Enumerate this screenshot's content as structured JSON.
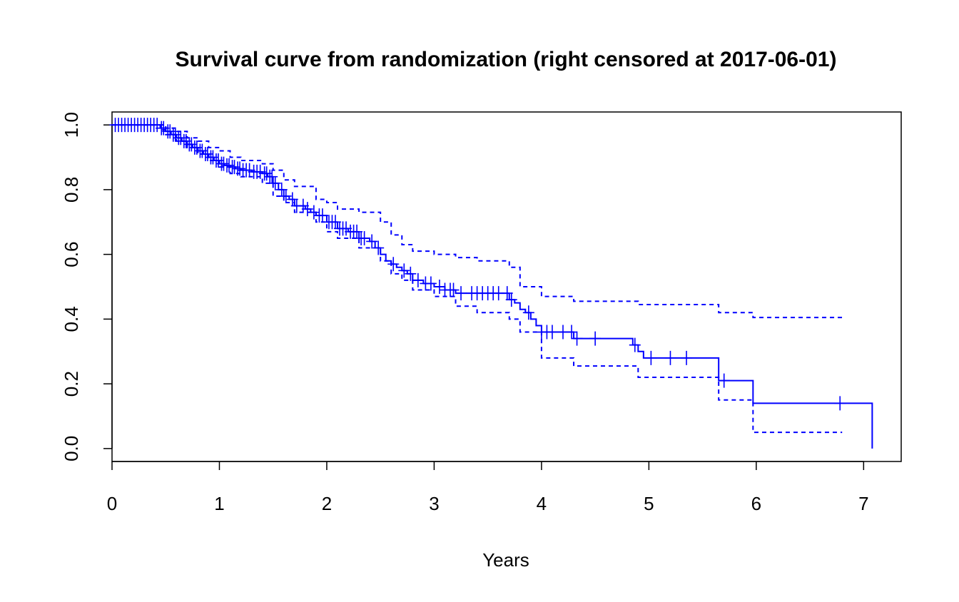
{
  "chart_data": {
    "type": "line",
    "title": "Survival curve from randomization (right censored at 2017-06-01)",
    "xlabel": "Years",
    "ylabel": "",
    "xlim": [
      0,
      7.35
    ],
    "ylim": [
      -0.04,
      1.04
    ],
    "x_ticks": [
      0,
      1,
      2,
      3,
      4,
      5,
      6,
      7
    ],
    "y_ticks": [
      0.0,
      0.2,
      0.4,
      0.6,
      0.8,
      1.0
    ],
    "x_tick_labels": [
      "0",
      "1",
      "2",
      "3",
      "4",
      "5",
      "6",
      "7"
    ],
    "y_tick_labels": [
      "0.0",
      "0.2",
      "0.4",
      "0.6",
      "0.8",
      "1.0"
    ],
    "grid": false,
    "color": "#0000FF",
    "series": [
      {
        "style": "solid",
        "x": [
          0,
          0.45,
          0.5,
          0.55,
          0.6,
          0.65,
          0.7,
          0.75,
          0.8,
          0.85,
          0.9,
          0.95,
          1.0,
          1.05,
          1.1,
          1.15,
          1.2,
          1.3,
          1.4,
          1.45,
          1.5,
          1.55,
          1.6,
          1.65,
          1.7,
          1.8,
          1.85,
          1.9,
          2.0,
          2.1,
          2.2,
          2.3,
          2.4,
          2.45,
          2.5,
          2.55,
          2.6,
          2.65,
          2.7,
          2.75,
          2.8,
          2.9,
          3.0,
          3.1,
          3.2,
          3.7,
          3.75,
          3.8,
          3.85,
          3.9,
          3.95,
          4.0,
          4.3,
          4.35,
          4.85,
          4.9,
          4.95,
          5.65,
          5.97,
          7.08
        ],
        "y": [
          1.0,
          0.99,
          0.98,
          0.97,
          0.96,
          0.95,
          0.94,
          0.93,
          0.92,
          0.91,
          0.9,
          0.89,
          0.88,
          0.875,
          0.87,
          0.865,
          0.86,
          0.855,
          0.85,
          0.84,
          0.82,
          0.8,
          0.78,
          0.77,
          0.75,
          0.74,
          0.73,
          0.72,
          0.7,
          0.68,
          0.67,
          0.65,
          0.64,
          0.62,
          0.6,
          0.58,
          0.57,
          0.56,
          0.55,
          0.54,
          0.52,
          0.51,
          0.5,
          0.49,
          0.48,
          0.46,
          0.45,
          0.43,
          0.42,
          0.4,
          0.38,
          0.36,
          0.34,
          0.34,
          0.32,
          0.3,
          0.28,
          0.21,
          0.14,
          0.0
        ]
      },
      {
        "style": "dashed",
        "x": [
          0,
          0.45,
          0.5,
          0.6,
          0.7,
          0.8,
          0.9,
          1.0,
          1.1,
          1.2,
          1.4,
          1.5,
          1.6,
          1.7,
          1.9,
          2.0,
          2.1,
          2.3,
          2.5,
          2.6,
          2.7,
          2.8,
          3.0,
          3.2,
          3.4,
          3.7,
          3.8,
          4.0,
          4.3,
          4.9,
          5.65,
          5.97,
          6.8
        ],
        "y": [
          1.0,
          1.0,
          0.99,
          0.98,
          0.96,
          0.95,
          0.93,
          0.92,
          0.9,
          0.89,
          0.88,
          0.86,
          0.83,
          0.81,
          0.77,
          0.76,
          0.74,
          0.73,
          0.7,
          0.66,
          0.63,
          0.61,
          0.6,
          0.59,
          0.58,
          0.56,
          0.5,
          0.47,
          0.455,
          0.445,
          0.42,
          0.405,
          0.405
        ]
      },
      {
        "style": "dashed",
        "x": [
          0,
          0.45,
          0.5,
          0.6,
          0.7,
          0.8,
          0.9,
          1.0,
          1.1,
          1.2,
          1.4,
          1.5,
          1.6,
          1.7,
          1.9,
          2.0,
          2.1,
          2.3,
          2.5,
          2.6,
          2.7,
          2.8,
          3.0,
          3.2,
          3.4,
          3.7,
          3.8,
          4.0,
          4.3,
          4.9,
          5.65,
          5.97,
          6.8
        ],
        "y": [
          1.0,
          0.985,
          0.97,
          0.95,
          0.93,
          0.91,
          0.89,
          0.87,
          0.85,
          0.84,
          0.82,
          0.78,
          0.76,
          0.73,
          0.7,
          0.67,
          0.65,
          0.62,
          0.58,
          0.54,
          0.52,
          0.49,
          0.47,
          0.44,
          0.42,
          0.4,
          0.36,
          0.28,
          0.255,
          0.22,
          0.15,
          0.05,
          0.05
        ]
      }
    ],
    "censor_x": [
      0.03,
      0.06,
      0.09,
      0.12,
      0.15,
      0.18,
      0.21,
      0.24,
      0.27,
      0.3,
      0.33,
      0.36,
      0.39,
      0.42,
      0.46,
      0.48,
      0.52,
      0.54,
      0.57,
      0.59,
      0.62,
      0.64,
      0.67,
      0.69,
      0.72,
      0.74,
      0.77,
      0.79,
      0.82,
      0.84,
      0.87,
      0.89,
      0.92,
      0.94,
      0.97,
      0.99,
      1.02,
      1.04,
      1.07,
      1.09,
      1.12,
      1.14,
      1.17,
      1.19,
      1.22,
      1.25,
      1.28,
      1.32,
      1.35,
      1.38,
      1.42,
      1.44,
      1.47,
      1.49,
      1.52,
      1.58,
      1.62,
      1.68,
      1.72,
      1.78,
      1.82,
      1.88,
      1.93,
      1.96,
      2.02,
      2.05,
      2.08,
      2.12,
      2.15,
      2.18,
      2.22,
      2.25,
      2.28,
      2.32,
      2.35,
      2.42,
      2.48,
      2.62,
      2.72,
      2.78,
      2.85,
      2.92,
      2.97,
      3.05,
      3.1,
      3.15,
      3.18,
      3.25,
      3.35,
      3.4,
      3.45,
      3.5,
      3.55,
      3.6,
      3.68,
      3.72,
      3.88,
      4.0,
      4.05,
      4.1,
      4.2,
      4.28,
      4.33,
      4.5,
      4.87,
      5.02,
      5.2,
      5.35,
      5.7,
      6.78
    ]
  }
}
